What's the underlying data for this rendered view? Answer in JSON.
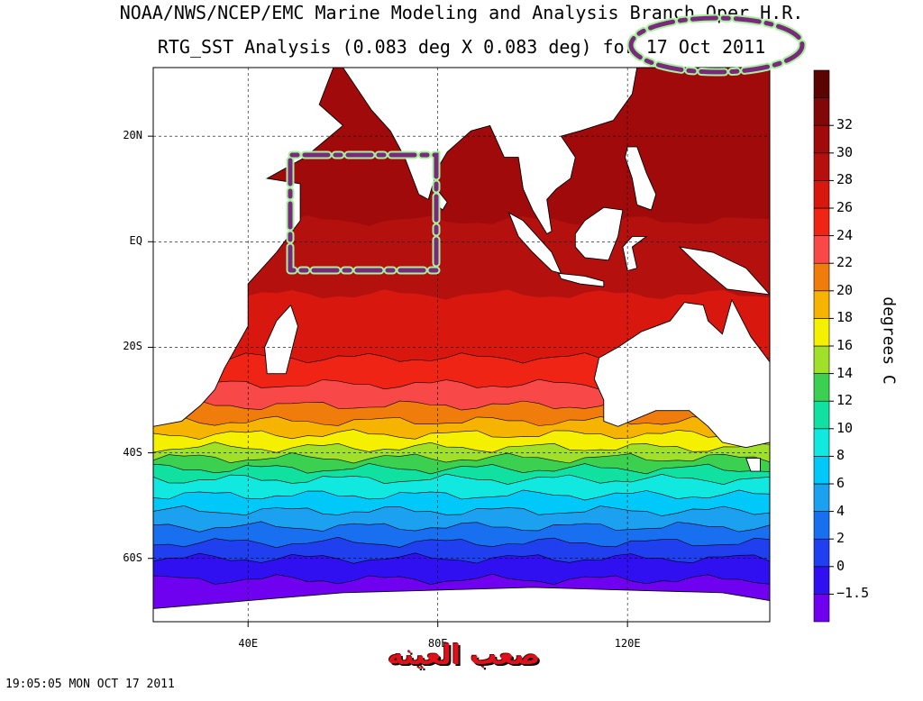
{
  "titles": {
    "line1": "NOAA/NWS/NCEP/EMC Marine Modeling and Analysis Branch Oper H.R.",
    "line2": "RTG_SST Analysis (0.083 deg X 0.083 deg) for 17 Oct 2011"
  },
  "map": {
    "lon_range": [
      20,
      150
    ],
    "lat_range": [
      -72,
      33
    ],
    "lat_labels": [
      {
        "lat": 20,
        "text": "20N"
      },
      {
        "lat": 0,
        "text": "EQ"
      },
      {
        "lat": -20,
        "text": "20S"
      },
      {
        "lat": -40,
        "text": "40S"
      },
      {
        "lat": -60,
        "text": "60S"
      }
    ],
    "lon_labels": [
      {
        "lon": 40,
        "text": "40E"
      },
      {
        "lon": 80,
        "text": "80E"
      },
      {
        "lon": 120,
        "text": "120E"
      }
    ],
    "sst_bands": [
      {
        "lat_north": 33,
        "lat_south": 4,
        "temp": 29.5,
        "color": "#a00a0a"
      },
      {
        "lat_north": 4,
        "lat_south": -10,
        "temp": 28.5,
        "color": "#b4100e"
      },
      {
        "lat_north": -10,
        "lat_south": -22,
        "temp": 27,
        "color": "#d8180f"
      },
      {
        "lat_north": -22,
        "lat_south": -27,
        "temp": 25,
        "color": "#f02414"
      },
      {
        "lat_north": -27,
        "lat_south": -31,
        "temp": 23,
        "color": "#f84848"
      },
      {
        "lat_north": -31,
        "lat_south": -34,
        "temp": 21,
        "color": "#f07c0c"
      },
      {
        "lat_north": -34,
        "lat_south": -36.5,
        "temp": 19,
        "color": "#f6b400"
      },
      {
        "lat_north": -36.5,
        "lat_south": -39,
        "temp": 17,
        "color": "#f4f000"
      },
      {
        "lat_north": -39,
        "lat_south": -41,
        "temp": 15,
        "color": "#a0e028"
      },
      {
        "lat_north": -41,
        "lat_south": -43,
        "temp": 13,
        "color": "#3cd050"
      },
      {
        "lat_north": -43,
        "lat_south": -45,
        "temp": 11,
        "color": "#10e0a0"
      },
      {
        "lat_north": -45,
        "lat_south": -48,
        "temp": 9,
        "color": "#10e8e0"
      },
      {
        "lat_north": -48,
        "lat_south": -51,
        "temp": 7,
        "color": "#00c8f8"
      },
      {
        "lat_north": -51,
        "lat_south": -54,
        "temp": 5,
        "color": "#1ca0f0"
      },
      {
        "lat_north": -54,
        "lat_south": -57,
        "temp": 3,
        "color": "#1870f0"
      },
      {
        "lat_north": -57,
        "lat_south": -60,
        "temp": 1,
        "color": "#2040f0"
      },
      {
        "lat_north": -60,
        "lat_south": -64,
        "temp": -0.5,
        "color": "#3010f0"
      },
      {
        "lat_north": -64,
        "lat_south": -72,
        "temp": -1.8,
        "color": "#7000f0"
      }
    ]
  },
  "colorbar": {
    "units": "degrees C",
    "levels": [
      {
        "label": "",
        "color": "#7000f0"
      },
      {
        "label": "−1.5",
        "color": "#3010f0"
      },
      {
        "label": "0",
        "color": "#2040f0"
      },
      {
        "label": "2",
        "color": "#1870f0"
      },
      {
        "label": "4",
        "color": "#1ca0f0"
      },
      {
        "label": "6",
        "color": "#00c8f8"
      },
      {
        "label": "8",
        "color": "#10e8e0"
      },
      {
        "label": "10",
        "color": "#10e0a0"
      },
      {
        "label": "12",
        "color": "#3cd050"
      },
      {
        "label": "14",
        "color": "#a0e028"
      },
      {
        "label": "16",
        "color": "#f4f000"
      },
      {
        "label": "18",
        "color": "#f6b400"
      },
      {
        "label": "20",
        "color": "#f07c0c"
      },
      {
        "label": "22",
        "color": "#f84848"
      },
      {
        "label": "24",
        "color": "#f02414"
      },
      {
        "label": "26",
        "color": "#d8180f"
      },
      {
        "label": "28",
        "color": "#b4100e"
      },
      {
        "label": "30",
        "color": "#a00a0a"
      },
      {
        "label": "32",
        "color": "#800808"
      },
      {
        "label": "",
        "color": "#5a0404"
      }
    ]
  },
  "timestamp": "19:05:05  MON OCT 17 2011",
  "watermark": "صعب العينه",
  "annotation_color": "#7a2a7a",
  "annotation_glow": "#a8f0a0",
  "land_color": "#ffffff"
}
